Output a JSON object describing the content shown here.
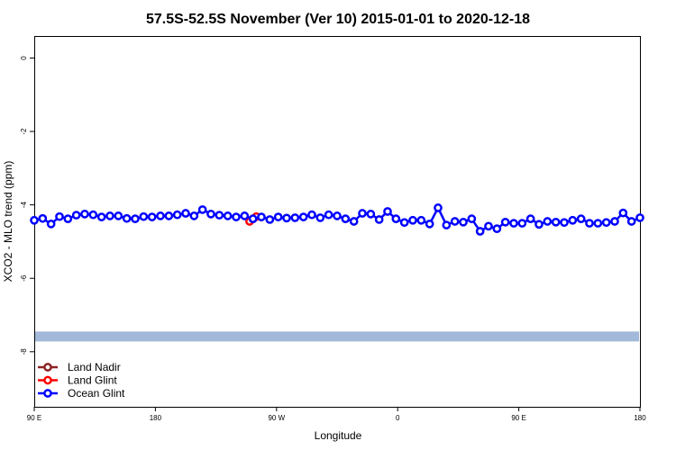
{
  "chart_data": {
    "type": "line",
    "title": "57.5S-52.5S November (Ver 10)   2015-01-01 to 2020-12-18",
    "xlabel": "Longitude",
    "ylabel": "XCO2 - MLO trend (ppm)",
    "xlim": [
      -180,
      180
    ],
    "ylim": [
      -9.5,
      0.6
    ],
    "x_ticks": [
      {
        "value": -180,
        "label": "90 E"
      },
      {
        "value": -108,
        "label": "180"
      },
      {
        "value": -36,
        "label": "90 W"
      },
      {
        "value": 36,
        "label": "0"
      },
      {
        "value": 108,
        "label": "90 E"
      },
      {
        "value": 180,
        "label": "180"
      }
    ],
    "y_ticks": [
      0,
      -2,
      -4,
      -6,
      -8
    ],
    "grid": false,
    "legend_placement": "bottom-left",
    "series": [
      {
        "name": "Land Nadir",
        "color": "#8b2323",
        "x": [],
        "y": []
      },
      {
        "name": "Land Glint",
        "color": "#ff0000",
        "x": [
          -52,
          -50,
          -48
        ],
        "y": [
          -4.45,
          -4.38,
          -4.32
        ]
      },
      {
        "name": "Ocean Glint",
        "color": "#0000ff",
        "x": [
          -180,
          -175,
          -170,
          -165,
          -160,
          -155,
          -150,
          -145,
          -140,
          -135,
          -130,
          -125,
          -120,
          -115,
          -110,
          -105,
          -100,
          -95,
          -90,
          -85,
          -80,
          -75,
          -70,
          -65,
          -60,
          -55,
          -50,
          -45,
          -40,
          -35,
          -30,
          -25,
          -20,
          -15,
          -10,
          -5,
          0,
          5,
          10,
          15,
          20,
          25,
          30,
          35,
          40,
          45,
          50,
          55,
          60,
          65,
          70,
          75,
          80,
          85,
          90,
          95,
          100,
          105,
          110,
          115,
          120,
          125,
          130,
          135,
          140,
          145,
          150,
          155,
          160,
          165,
          170,
          175,
          180
        ],
        "y": [
          -4.42,
          -4.37,
          -4.52,
          -4.32,
          -4.38,
          -4.28,
          -4.25,
          -4.27,
          -4.33,
          -4.3,
          -4.3,
          -4.37,
          -4.38,
          -4.32,
          -4.33,
          -4.3,
          -4.3,
          -4.27,
          -4.23,
          -4.3,
          -4.13,
          -4.25,
          -4.28,
          -4.3,
          -4.33,
          -4.3,
          -4.38,
          -4.33,
          -4.4,
          -4.33,
          -4.36,
          -4.35,
          -4.33,
          -4.27,
          -4.35,
          -4.27,
          -4.3,
          -4.38,
          -4.45,
          -4.23,
          -4.25,
          -4.4,
          -4.18,
          -4.38,
          -4.48,
          -4.42,
          -4.42,
          -4.52,
          -4.08,
          -4.55,
          -4.45,
          -4.47,
          -4.38,
          -4.72,
          -4.58,
          -4.65,
          -4.47,
          -4.5,
          -4.5,
          -4.38,
          -4.53,
          -4.45,
          -4.47,
          -4.48,
          -4.42,
          -4.38,
          -4.5,
          -4.5,
          -4.48,
          -4.45,
          -4.22,
          -4.45,
          -4.35
        ]
      }
    ],
    "land_mask_color": "#a3b9d9",
    "land_mask_y": [
      -7.45,
      -7.72
    ]
  }
}
